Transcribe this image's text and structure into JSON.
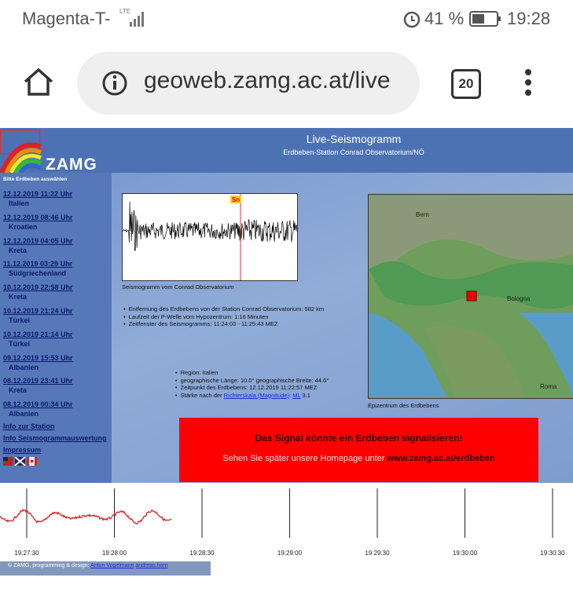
{
  "status_bar": {
    "carrier": "Magenta-T-",
    "network": "LTE",
    "battery": "41 %",
    "time": "19:28"
  },
  "browser": {
    "url": "geoweb.zamg.ac.at/live",
    "tab_count": "20"
  },
  "page": {
    "logo": "ZAMG",
    "title": "Live-Seismogramm",
    "subtitle": "Erdbeben-Station Conrad Observatorium/NÖ",
    "sidebar": {
      "heading": "Bitte Erdbeben auswählen",
      "events": [
        {
          "date": "12.12.2019  11:22 Uhr",
          "place": "Italien"
        },
        {
          "date": "12.12.2019  08:46 Uhr",
          "place": "Kroatien"
        },
        {
          "date": "12.12.2019  04:05 Uhr",
          "place": "Kreta"
        },
        {
          "date": "11.12.2019  03:29 Uhr",
          "place": "Südgriechenland"
        },
        {
          "date": "10.12.2019  22:58 Uhr",
          "place": "Kreta"
        },
        {
          "date": "10.12.2019  21:24 Uhr",
          "place": "Türkei"
        },
        {
          "date": "10.12.2019  21:14 Uhr",
          "place": "Türkei"
        },
        {
          "date": "09.12.2019  15:53 Uhr",
          "place": "Albanien"
        },
        {
          "date": "08.12.2019  23:41 Uhr",
          "place": "Kreta"
        },
        {
          "date": "08.12.2019  00:34 Uhr",
          "place": "Albanien"
        }
      ],
      "links": [
        "Info zur Station",
        "Info Seismogrammauswertung",
        "Impressum"
      ]
    },
    "seismogram": {
      "phase": "Sn",
      "caption": "Seismogramm vom Conrad Observatorium"
    },
    "station_info": [
      "Entfernung des Erdbebens von der Station Conrad Observatorium: 582 km",
      "Laufzeit der P-Welle vom Hypozentrum: 1:16 Minuten",
      "Zeitfenster des Seismogramms: 11:24:03 - 11:25:43 MEZ"
    ],
    "event_info": {
      "region": "Region: Italien",
      "coords": "geographische Länge: 10.0° geographische Breite: 44.6°",
      "time": "Zeitpunkt des Erdbebens: 12.12.2019 11:22:57 MEZ",
      "magnitude_prefix": "Stärke nach der ",
      "magnitude_link": "Richterskala (Magnitude)",
      "magnitude_sep": ": ",
      "ml_link": "ML",
      "magnitude_value": " 3.1"
    },
    "map": {
      "labels": [
        "Bern",
        "Bologna",
        "Roma"
      ],
      "caption": "Epizentrum des Erdbebens"
    },
    "alert": {
      "headline": "Das Signal könnte ein Erdbeben signalisieren!",
      "text": "Sehen Sie später unsere Homepage unter ",
      "link": "www.zamg.ac.at/erdbeben"
    },
    "timeline": [
      "19:27:30",
      "19:28:00",
      "19:28:30",
      "19:29:00",
      "19:29:30",
      "19:30:00",
      "19:30:30"
    ],
    "footer": {
      "text": "© ZAMG, programming & design: ",
      "links": [
        "Anton Vogelmann",
        "andreas.horn"
      ]
    }
  }
}
